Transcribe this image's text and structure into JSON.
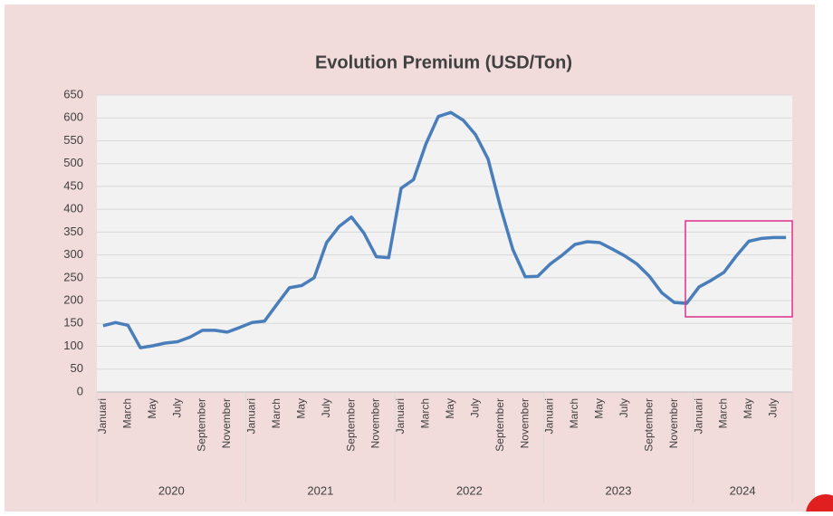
{
  "chart_data": {
    "type": "line",
    "title": "Evolution Premium (USD/Ton)",
    "categories": [
      "Januari",
      null,
      "March",
      null,
      "May",
      null,
      "July",
      null,
      "September",
      null,
      "November",
      null,
      "Januari",
      null,
      "March",
      null,
      "May",
      null,
      "July",
      null,
      "September",
      null,
      "November",
      null,
      "Januari",
      null,
      "March",
      null,
      "May",
      null,
      "July",
      null,
      "September",
      null,
      "November",
      null,
      "Januari",
      null,
      "March",
      null,
      "May",
      null,
      "July",
      null,
      "September",
      null,
      "November",
      null,
      "Januari",
      null,
      "March",
      null,
      "May",
      null,
      "July",
      null
    ],
    "groups": [
      "2020",
      "2021",
      "2022",
      "2023",
      "2024"
    ],
    "series": [
      {
        "color": "#4a7ebb",
        "values": [
          145,
          152,
          146,
          97,
          101,
          107,
          110,
          120,
          135,
          135,
          131,
          141,
          152,
          155,
          192,
          228,
          233,
          250,
          327,
          362,
          383,
          348,
          296,
          294,
          446,
          465,
          543,
          603,
          612,
          595,
          563,
          510,
          405,
          312,
          252,
          253,
          280,
          300,
          323,
          329,
          327,
          313,
          298,
          280,
          253,
          217,
          196,
          194,
          230,
          245,
          262,
          298,
          330,
          336,
          338,
          338
        ]
      }
    ],
    "ylim": [
      0,
      650
    ],
    "yticks": [
      0,
      50,
      100,
      150,
      200,
      250,
      300,
      350,
      400,
      450,
      500,
      550,
      600,
      650
    ],
    "grid": true
  }
}
